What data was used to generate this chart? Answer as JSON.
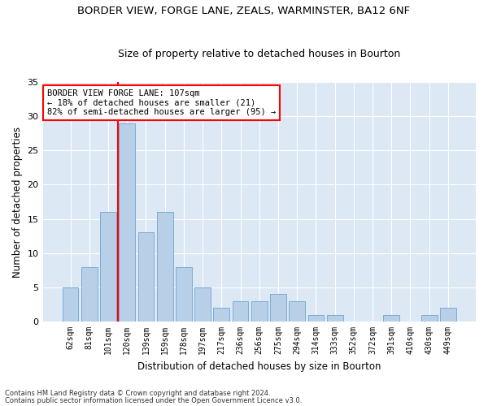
{
  "title1": "BORDER VIEW, FORGE LANE, ZEALS, WARMINSTER, BA12 6NF",
  "title2": "Size of property relative to detached houses in Bourton",
  "xlabel": "Distribution of detached houses by size in Bourton",
  "ylabel": "Number of detached properties",
  "categories": [
    "62sqm",
    "81sqm",
    "101sqm",
    "120sqm",
    "139sqm",
    "159sqm",
    "178sqm",
    "197sqm",
    "217sqm",
    "236sqm",
    "256sqm",
    "275sqm",
    "294sqm",
    "314sqm",
    "333sqm",
    "352sqm",
    "372sqm",
    "391sqm",
    "410sqm",
    "430sqm",
    "449sqm"
  ],
  "values": [
    5,
    8,
    16,
    29,
    13,
    16,
    8,
    5,
    2,
    3,
    3,
    4,
    3,
    1,
    1,
    0,
    0,
    1,
    0,
    1,
    2
  ],
  "bar_color": "#b8cfe8",
  "bar_edgecolor": "#7aadd4",
  "vline_x_index": 2.5,
  "vline_color": "red",
  "annotation_text": "BORDER VIEW FORGE LANE: 107sqm\n← 18% of detached houses are smaller (21)\n82% of semi-detached houses are larger (95) →",
  "ylim": [
    0,
    35
  ],
  "yticks": [
    0,
    5,
    10,
    15,
    20,
    25,
    30,
    35
  ],
  "bg_color": "#dde8f5",
  "footer1": "Contains HM Land Registry data © Crown copyright and database right 2024.",
  "footer2": "Contains public sector information licensed under the Open Government Licence v3.0."
}
